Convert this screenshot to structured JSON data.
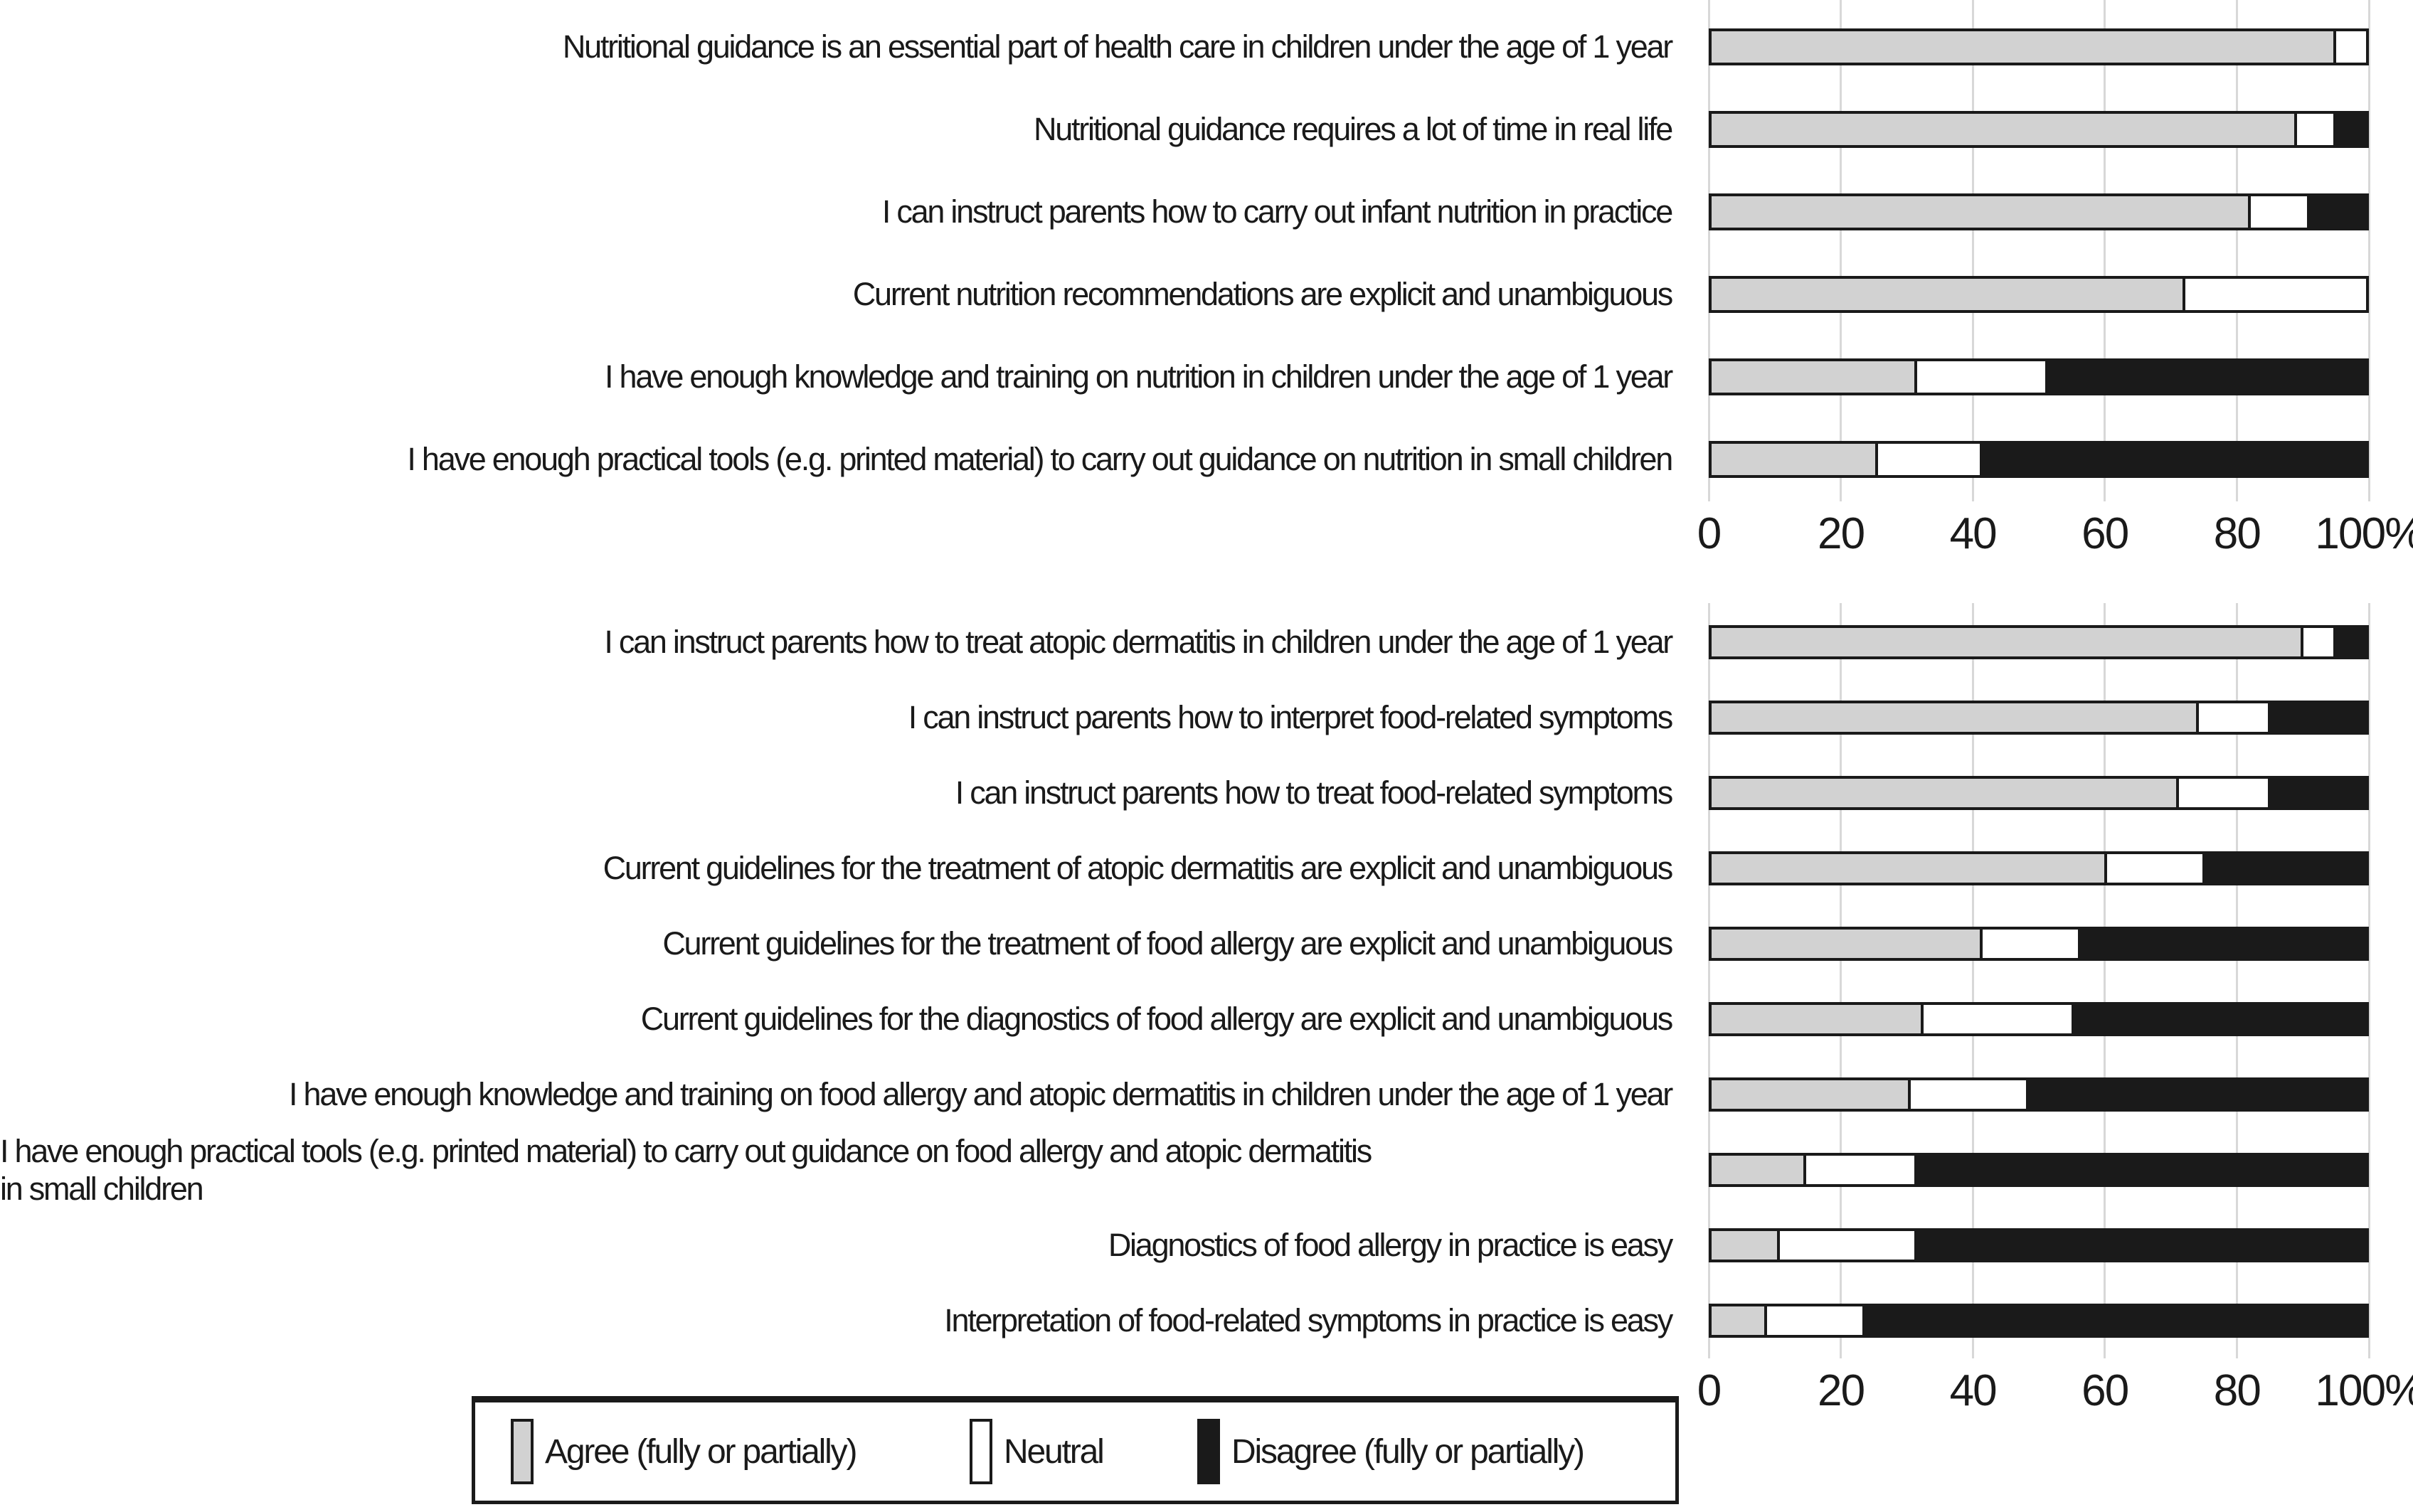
{
  "colors": {
    "agree": "#d2d2d2",
    "neutral": "#ffffff",
    "disagree": "#1a1a1a",
    "bar_border": "#1a1a1a",
    "gridline": "#d8d8d8",
    "text": "#1a1a1a",
    "background": "#ffffff"
  },
  "legend": {
    "items": [
      {
        "name": "legend-swatch-agree",
        "label": "Agree (fully or partially)",
        "color": "#d2d2d2"
      },
      {
        "name": "legend-swatch-neutral",
        "label": "Neutral",
        "color": "#ffffff"
      },
      {
        "name": "legend-swatch-disagree",
        "label": "Disagree (fully or partially)",
        "color": "#1a1a1a"
      }
    ]
  },
  "chart_data": [
    {
      "type": "bar",
      "stacked": true,
      "orientation": "horizontal",
      "unit": "percent",
      "xlim": [
        0,
        100
      ],
      "x_ticks": [
        "0",
        "20",
        "40",
        "60",
        "80",
        "100%"
      ],
      "grid": true,
      "legend_position": "bottom",
      "categories": [
        "Nutritional guidance is an essential part of health care in children under the age of 1 year",
        "Nutritional guidance requires a lot of time in real life",
        "I can instruct parents how to carry out infant nutrition in practice",
        "Current nutrition recommendations are explicit and unambiguous",
        "I have enough knowledge and training on nutrition in children under the age of 1 year",
        "I have enough practical tools (e.g. printed material) to carry out guidance on nutrition in small children"
      ],
      "series": [
        {
          "name": "Agree (fully or partially)",
          "color": "#d2d2d2",
          "values": [
            95,
            89,
            82,
            72,
            31,
            25
          ]
        },
        {
          "name": "Neutral",
          "color": "#ffffff",
          "values": [
            5,
            6,
            9,
            28,
            20,
            16
          ]
        },
        {
          "name": "Disagree (fully or partially)",
          "color": "#1a1a1a",
          "values": [
            0,
            5,
            9,
            0,
            49,
            59
          ]
        }
      ]
    },
    {
      "type": "bar",
      "stacked": true,
      "orientation": "horizontal",
      "unit": "percent",
      "xlim": [
        0,
        100
      ],
      "x_ticks": [
        "0",
        "20",
        "40",
        "60",
        "80",
        "100%"
      ],
      "grid": true,
      "legend_position": "bottom",
      "categories": [
        "I can instruct parents how to treat atopic dermatitis in children under the age of 1 year",
        "I can instruct parents how to interpret food-related symptoms",
        "I can instruct parents how to treat food-related symptoms",
        "Current guidelines for the treatment of atopic dermatitis are explicit and unambiguous",
        "Current guidelines for the treatment of food allergy are explicit and unambiguous",
        "Current guidelines for the diagnostics of food allergy are explicit and unambiguous",
        "I have enough knowledge and training on food allergy and atopic dermatitis in children under the age of 1 year",
        "I have enough practical tools (e.g. printed material) to carry out guidance on food allergy and atopic dermatitis\nin small children",
        "Diagnostics of food allergy in practice is easy",
        "Interpretation of food-related symptoms in practice is easy"
      ],
      "series": [
        {
          "name": "Agree (fully or partially)",
          "color": "#d2d2d2",
          "values": [
            90,
            74,
            71,
            60,
            41,
            32,
            30,
            14,
            10,
            8
          ]
        },
        {
          "name": "Neutral",
          "color": "#ffffff",
          "values": [
            5,
            11,
            14,
            15,
            15,
            23,
            18,
            17,
            21,
            15
          ]
        },
        {
          "name": "Disagree (fully or partially)",
          "color": "#1a1a1a",
          "values": [
            5,
            15,
            15,
            25,
            44,
            45,
            52,
            69,
            69,
            77
          ]
        }
      ]
    }
  ]
}
